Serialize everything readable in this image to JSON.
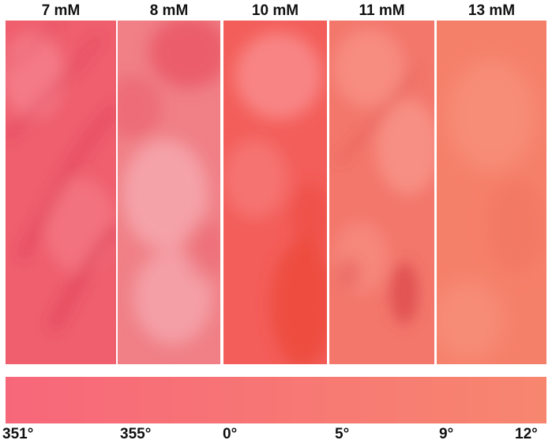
{
  "panels": [
    {
      "label": "7 mM",
      "base": "#ef5f6d",
      "light": "#f78591",
      "dark": "#d9334f"
    },
    {
      "label": "8 mM",
      "base": "#f07f86",
      "light": "#f6aab0",
      "dark": "#e8505e"
    },
    {
      "label": "10 mM",
      "base": "#f35e5a",
      "light": "#f98f8e",
      "dark": "#e9402f"
    },
    {
      "label": "11 mM",
      "base": "#f3776b",
      "light": "#fa998f",
      "dark": "#d9454a"
    },
    {
      "label": "13 mM",
      "base": "#f5806a",
      "light": "#f99a84",
      "dark": "#ee6b58"
    }
  ],
  "hue_scale": {
    "ticks": [
      "351°",
      "355°",
      "0°",
      "5°",
      "9°",
      "12°"
    ],
    "start_color": "#f7677a",
    "end_color": "#f7866f"
  }
}
